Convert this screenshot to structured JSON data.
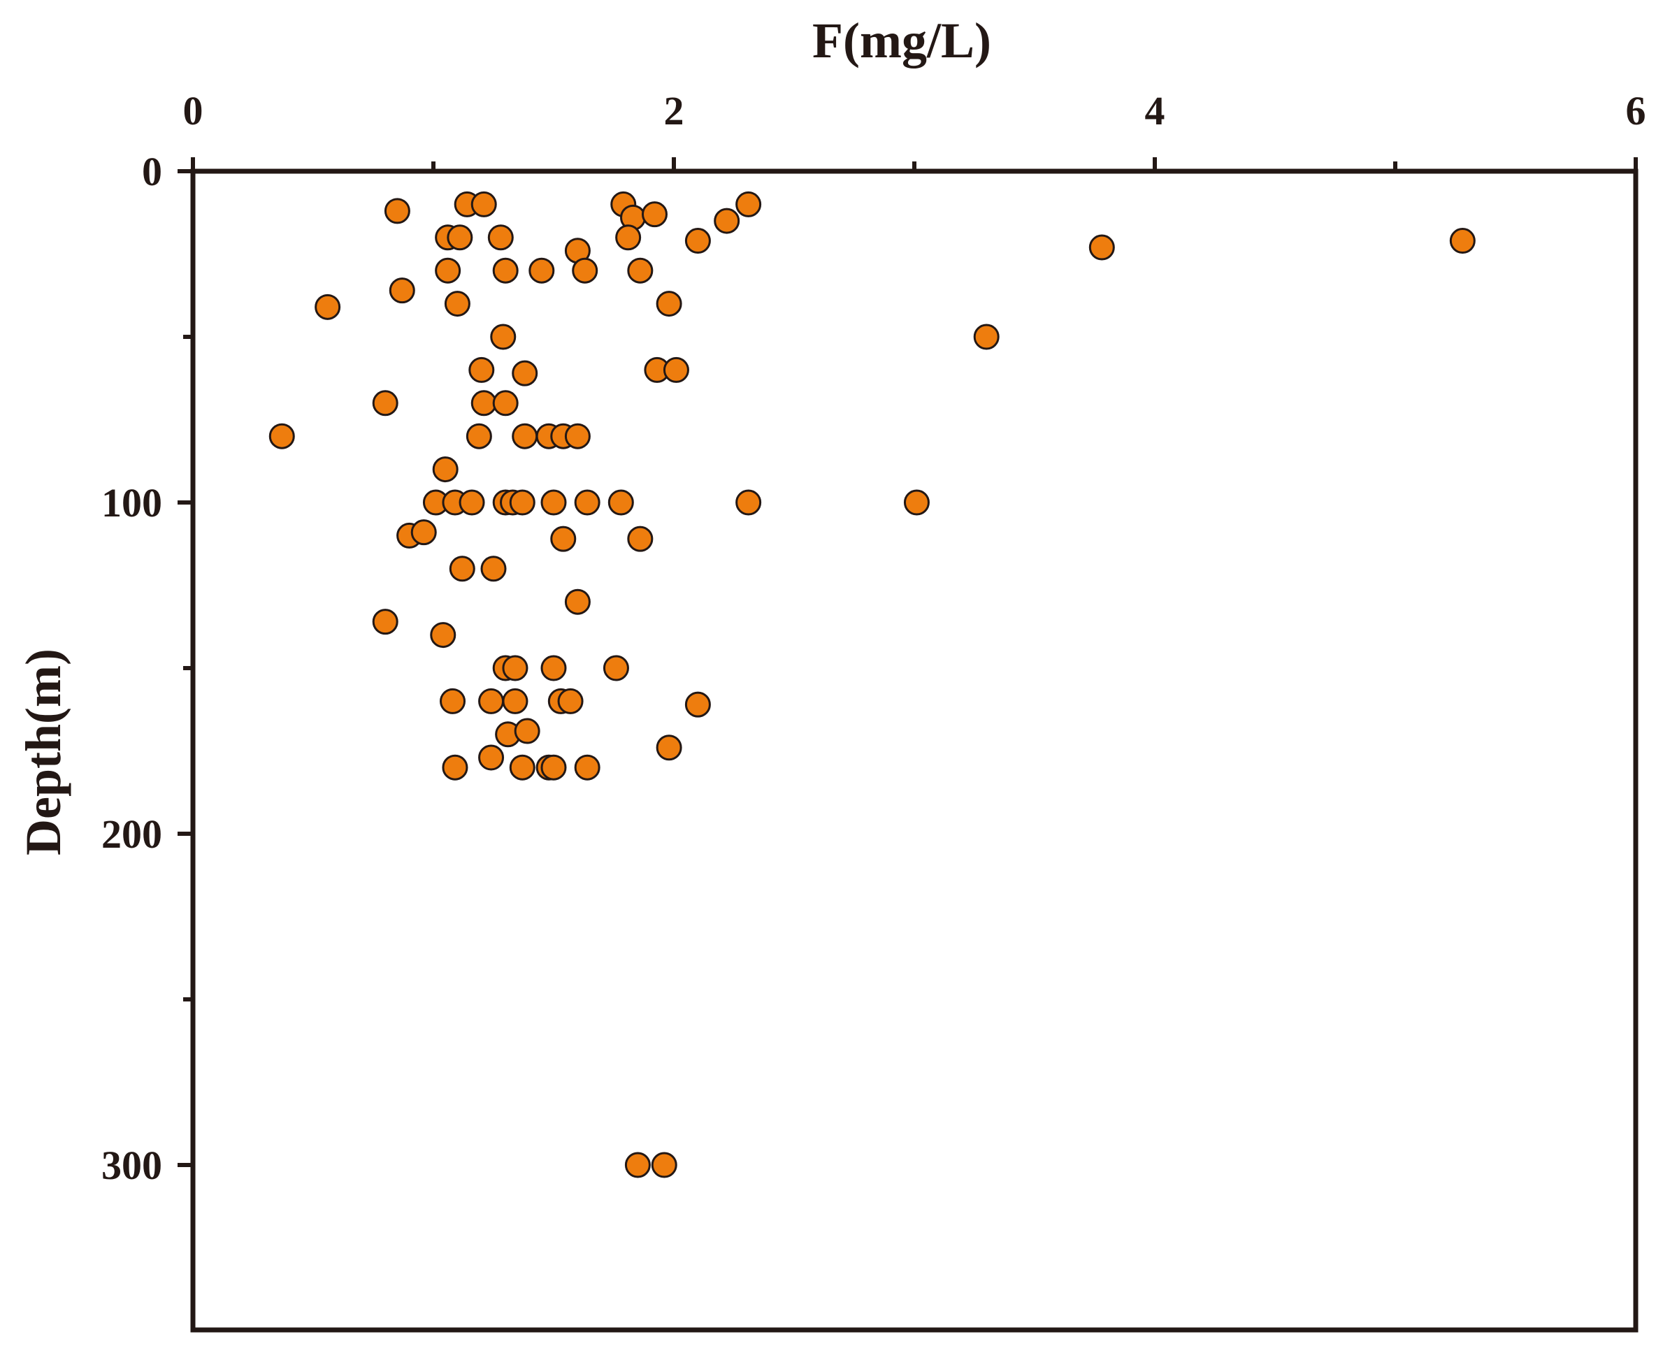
{
  "chart_data": {
    "type": "scatter",
    "xlabel": "F(mg/L)",
    "ylabel": "Depth(m)",
    "x_axis_position": "top",
    "y_axis_inverted": true,
    "xlim": [
      0,
      6
    ],
    "ylim": [
      0,
      350
    ],
    "x_ticks": [
      0,
      1,
      2,
      3,
      4,
      5,
      6
    ],
    "x_tick_labels": [
      "0",
      "",
      "2",
      "",
      "4",
      "",
      "6"
    ],
    "y_ticks": [
      0,
      50,
      100,
      150,
      200,
      250,
      300
    ],
    "y_tick_labels": [
      "0",
      "",
      "100",
      "",
      "200",
      "",
      "300"
    ],
    "grid": false,
    "legend": "none",
    "marker_color": "#EE7D0E",
    "marker_edge_color": "#231815",
    "axis_color": "#231815",
    "points": [
      [
        0.85,
        12
      ],
      [
        1.14,
        10
      ],
      [
        1.21,
        10
      ],
      [
        1.79,
        10
      ],
      [
        1.83,
        14
      ],
      [
        1.92,
        13
      ],
      [
        2.31,
        10
      ],
      [
        2.22,
        15
      ],
      [
        2.1,
        21
      ],
      [
        1.06,
        20
      ],
      [
        1.11,
        20
      ],
      [
        1.28,
        20
      ],
      [
        1.81,
        20
      ],
      [
        1.6,
        24
      ],
      [
        1.63,
        30
      ],
      [
        1.86,
        30
      ],
      [
        1.06,
        30
      ],
      [
        1.3,
        30
      ],
      [
        1.45,
        30
      ],
      [
        5.28,
        21
      ],
      [
        3.78,
        23
      ],
      [
        0.87,
        36
      ],
      [
        0.56,
        41
      ],
      [
        1.1,
        40
      ],
      [
        1.98,
        40
      ],
      [
        1.29,
        50
      ],
      [
        3.3,
        50
      ],
      [
        1.2,
        60
      ],
      [
        1.38,
        61
      ],
      [
        1.93,
        60
      ],
      [
        2.01,
        60
      ],
      [
        0.8,
        70
      ],
      [
        1.21,
        70
      ],
      [
        1.3,
        70
      ],
      [
        0.37,
        80
      ],
      [
        1.19,
        80
      ],
      [
        1.38,
        80
      ],
      [
        1.48,
        80
      ],
      [
        1.54,
        80
      ],
      [
        1.6,
        80
      ],
      [
        1.05,
        90
      ],
      [
        1.01,
        100
      ],
      [
        1.09,
        100
      ],
      [
        1.16,
        100
      ],
      [
        1.3,
        100
      ],
      [
        1.33,
        100
      ],
      [
        1.37,
        100
      ],
      [
        1.5,
        100
      ],
      [
        1.64,
        100
      ],
      [
        1.78,
        100
      ],
      [
        2.31,
        100
      ],
      [
        3.01,
        100
      ],
      [
        0.9,
        110
      ],
      [
        0.96,
        109
      ],
      [
        1.54,
        111
      ],
      [
        1.86,
        111
      ],
      [
        1.12,
        120
      ],
      [
        1.25,
        120
      ],
      [
        1.6,
        130
      ],
      [
        0.8,
        136
      ],
      [
        1.04,
        140
      ],
      [
        1.3,
        150
      ],
      [
        1.34,
        150
      ],
      [
        1.5,
        150
      ],
      [
        1.76,
        150
      ],
      [
        1.08,
        160
      ],
      [
        1.24,
        160
      ],
      [
        1.34,
        160
      ],
      [
        1.53,
        160
      ],
      [
        1.57,
        160
      ],
      [
        2.1,
        161
      ],
      [
        1.31,
        170
      ],
      [
        1.39,
        169
      ],
      [
        1.24,
        177
      ],
      [
        1.98,
        174
      ],
      [
        1.09,
        180
      ],
      [
        1.37,
        180
      ],
      [
        1.48,
        180
      ],
      [
        1.5,
        180
      ],
      [
        1.64,
        180
      ],
      [
        1.85,
        300
      ],
      [
        1.96,
        300
      ]
    ]
  }
}
